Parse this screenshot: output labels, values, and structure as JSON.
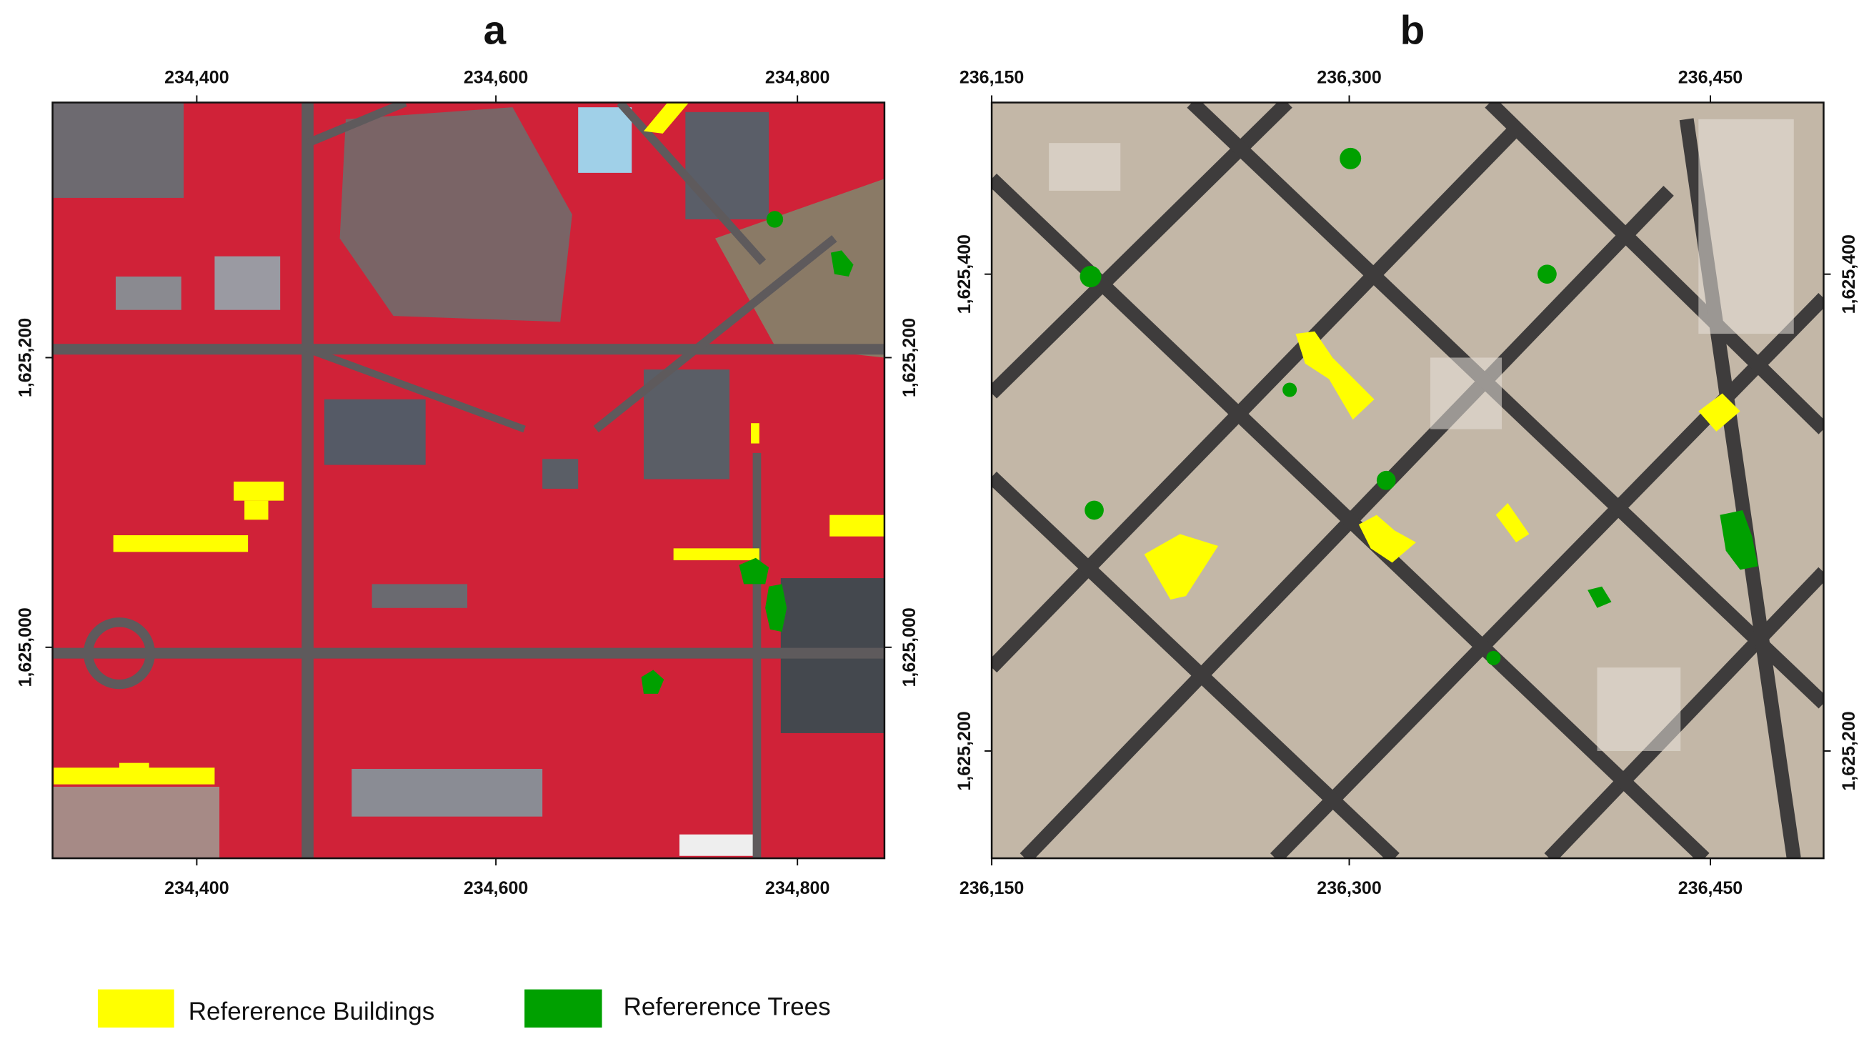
{
  "panels": [
    {
      "title": "a",
      "top_ticks": [
        "234,400",
        "234,600",
        "234,800"
      ],
      "bottom_ticks": [
        "234,400",
        "234,600",
        "234,800"
      ],
      "left_ticks": [
        "1,625,200",
        "1,625,000"
      ],
      "right_ticks": [
        "1,625,200",
        "1,625,000"
      ]
    },
    {
      "title": "b",
      "top_ticks": [
        "236,150",
        "236,300",
        "236,450"
      ],
      "bottom_ticks": [
        "236,150",
        "236,300",
        "236,450"
      ],
      "left_ticks": [
        "1,625,400",
        "1,625,200"
      ],
      "right_ticks": [
        "1,625,400",
        "1,625,200"
      ]
    }
  ],
  "legend": [
    {
      "label": "Refererence Buildings",
      "color": "#ffff00"
    },
    {
      "label": "Refererence Trees",
      "color": "#00a000"
    }
  ]
}
